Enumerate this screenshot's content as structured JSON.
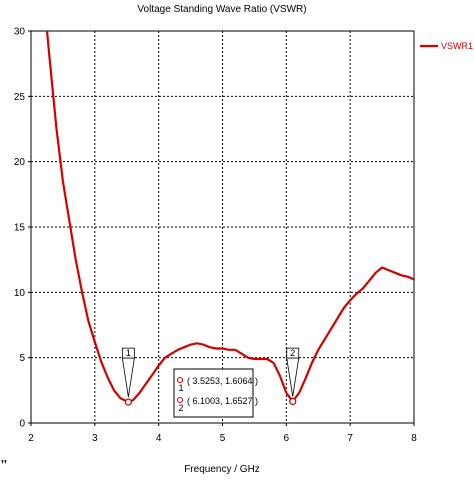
{
  "chart_data": {
    "type": "line",
    "title": "Voltage Standing Wave Ratio (VSWR)",
    "xlabel": "Frequency / GHz",
    "ylabel": "",
    "xlim": [
      2,
      8
    ],
    "ylim": [
      0,
      30
    ],
    "xticks": [
      2,
      3,
      4,
      5,
      6,
      7,
      8
    ],
    "yticks": [
      0,
      5,
      10,
      15,
      20,
      25,
      30
    ],
    "grid": true,
    "legend_position": "top-right",
    "series": [
      {
        "name": "VSWR1",
        "color": "#d40000",
        "x": [
          2.25,
          2.3,
          2.4,
          2.5,
          2.6,
          2.7,
          2.8,
          2.9,
          3.0,
          3.1,
          3.2,
          3.3,
          3.4,
          3.5253,
          3.6,
          3.7,
          3.8,
          3.9,
          4.0,
          4.1,
          4.2,
          4.3,
          4.4,
          4.5,
          4.6,
          4.7,
          4.8,
          4.9,
          5.0,
          5.1,
          5.2,
          5.3,
          5.4,
          5.5,
          5.6,
          5.7,
          5.8,
          5.9,
          6.0,
          6.1003,
          6.2,
          6.3,
          6.4,
          6.5,
          6.6,
          6.7,
          6.8,
          6.9,
          7.0,
          7.1,
          7.2,
          7.3,
          7.4,
          7.5,
          7.6,
          7.7,
          7.8,
          7.9,
          8.0
        ],
        "y": [
          30,
          27.5,
          22.5,
          18.5,
          15.5,
          12.5,
          10,
          7.8,
          6.2,
          4.7,
          3.5,
          2.5,
          1.9,
          1.6064,
          1.75,
          2.3,
          3.0,
          3.7,
          4.4,
          5.0,
          5.3,
          5.6,
          5.8,
          6.0,
          6.1,
          6.0,
          5.8,
          5.7,
          5.7,
          5.6,
          5.6,
          5.3,
          5.0,
          4.9,
          4.9,
          4.9,
          4.6,
          3.6,
          2.3,
          1.6527,
          2.3,
          3.4,
          4.6,
          5.6,
          6.4,
          7.2,
          8.0,
          8.8,
          9.4,
          9.9,
          10.3,
          10.9,
          11.5,
          11.9,
          11.7,
          11.5,
          11.3,
          11.2,
          11.0
        ]
      }
    ],
    "markers": [
      {
        "label": "1",
        "x": 3.5253,
        "y": 1.6064,
        "readout": "( 3.5253, 1.6064 )"
      },
      {
        "label": "2",
        "x": 6.1003,
        "y": 1.6527,
        "readout": "( 6.1003, 1.6527 )"
      }
    ]
  },
  "stray_mark": "\""
}
